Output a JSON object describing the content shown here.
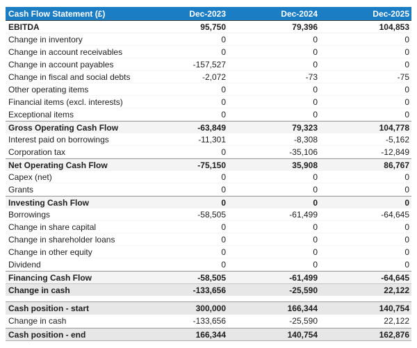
{
  "colors": {
    "header_bg": "#1b7dc4",
    "header_text": "#ffffff",
    "summary_row_bg": "#f4f4f4",
    "highlight_row_bg": "#e7e7e7",
    "body_text": "#1d1d1d"
  },
  "chart_data": {
    "type": "table",
    "title": "Cash Flow Statement (£)",
    "columns": [
      "Dec-2023",
      "Dec-2024",
      "Dec-2025"
    ],
    "sections": [
      {
        "name": "operating-investing-financing",
        "rows": [
          {
            "label": "EBITDA",
            "values": [
              "95,750",
              "79,396",
              "104,853"
            ],
            "emphasis": "ebitda"
          },
          {
            "label": "Change in inventory",
            "values": [
              "0",
              "0",
              "0"
            ],
            "emphasis": "normal"
          },
          {
            "label": "Change in account receivables",
            "values": [
              "0",
              "0",
              "0"
            ],
            "emphasis": "normal"
          },
          {
            "label": "Change in account payables",
            "values": [
              "-157,527",
              "0",
              "0"
            ],
            "emphasis": "normal"
          },
          {
            "label": "Change in fiscal and social debts",
            "values": [
              "-2,072",
              "-73",
              "-75"
            ],
            "emphasis": "normal"
          },
          {
            "label": "Other operating items",
            "values": [
              "0",
              "0",
              "0"
            ],
            "emphasis": "normal"
          },
          {
            "label": "Financial items (excl. interests)",
            "values": [
              "0",
              "0",
              "0"
            ],
            "emphasis": "normal"
          },
          {
            "label": "Exceptional items",
            "values": [
              "0",
              "0",
              "0"
            ],
            "emphasis": "normal"
          },
          {
            "label": "Gross Operating Cash Flow",
            "values": [
              "-63,849",
              "79,323",
              "104,778"
            ],
            "emphasis": "total"
          },
          {
            "label": "Interest paid on borrowings",
            "values": [
              "-11,301",
              "-8,308",
              "-5,162"
            ],
            "emphasis": "normal"
          },
          {
            "label": "Corporation tax",
            "values": [
              "0",
              "-35,106",
              "-12,849"
            ],
            "emphasis": "normal"
          },
          {
            "label": "Net Operating Cash Flow",
            "values": [
              "-75,150",
              "35,908",
              "86,767"
            ],
            "emphasis": "total"
          },
          {
            "label": "Capex (net)",
            "values": [
              "0",
              "0",
              "0"
            ],
            "emphasis": "normal"
          },
          {
            "label": "Grants",
            "values": [
              "0",
              "0",
              "0"
            ],
            "emphasis": "normal"
          },
          {
            "label": "Investing Cash Flow",
            "values": [
              "0",
              "0",
              "0"
            ],
            "emphasis": "total"
          },
          {
            "label": "Borrowings",
            "values": [
              "-58,505",
              "-61,499",
              "-64,645"
            ],
            "emphasis": "normal"
          },
          {
            "label": "Change in share capital",
            "values": [
              "0",
              "0",
              "0"
            ],
            "emphasis": "normal"
          },
          {
            "label": "Change in shareholder loans",
            "values": [
              "0",
              "0",
              "0"
            ],
            "emphasis": "normal"
          },
          {
            "label": "Change in other equity",
            "values": [
              "0",
              "0",
              "0"
            ],
            "emphasis": "normal"
          },
          {
            "label": "Dividend",
            "values": [
              "0",
              "0",
              "0"
            ],
            "emphasis": "normal"
          },
          {
            "label": "Financing Cash Flow",
            "values": [
              "-58,505",
              "-61,499",
              "-64,645"
            ],
            "emphasis": "total"
          },
          {
            "label": "Change in cash",
            "values": [
              "-133,656",
              "-25,590",
              "22,122"
            ],
            "emphasis": "total-dark"
          }
        ]
      },
      {
        "name": "cash-position",
        "rows": [
          {
            "label": "Cash position - start",
            "values": [
              "300,000",
              "166,344",
              "140,754"
            ],
            "emphasis": "start"
          },
          {
            "label": "Change in cash",
            "values": [
              "-133,656",
              "-25,590",
              "22,122"
            ],
            "emphasis": "normal"
          },
          {
            "label": "Cash position - end",
            "values": [
              "166,344",
              "140,754",
              "162,876"
            ],
            "emphasis": "end"
          }
        ]
      }
    ]
  }
}
